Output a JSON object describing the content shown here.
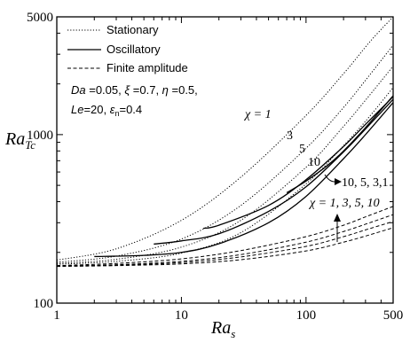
{
  "chart_data": {
    "type": "line",
    "xscale": "log",
    "yscale": "log",
    "xlim": [
      1,
      500
    ],
    "ylim": [
      100,
      5000
    ],
    "xticks": [
      {
        "value": 1,
        "label": "1"
      },
      {
        "value": 10,
        "label": "10"
      },
      {
        "value": 100,
        "label": "100"
      },
      {
        "value": 500,
        "label": "500"
      }
    ],
    "yticks": [
      {
        "value": 100,
        "label": "100"
      },
      {
        "value": 1000,
        "label": "1000"
      },
      {
        "value": 5000,
        "label": "5000"
      }
    ],
    "xlabel": {
      "main": "Ra",
      "sub": "s"
    },
    "ylabel": {
      "main": "Ra",
      "sub": "Tc"
    },
    "legend": {
      "position": "top-left",
      "entries": [
        {
          "label": "Stationary",
          "style": "dotted"
        },
        {
          "label": "Oscillatory",
          "style": "solid"
        },
        {
          "label": "Finite amplitude",
          "style": "dashed"
        }
      ]
    },
    "parameters": {
      "line1": {
        "Da": "Da",
        "Da_val": " =0.05, ",
        "xi": "ξ",
        "xi_val": " =0.7, ",
        "eta": "η",
        "eta_val": " =0.5,"
      },
      "line2": {
        "Le": "Le",
        "Le_val": "=20, ",
        "eps": "ε",
        "eps_sub": "n",
        "eps_val": "=0.4"
      }
    },
    "annotations": {
      "chi1": "χ = 1",
      "chi3": "3",
      "chi5": "5",
      "chi10": "10",
      "oscillatory_order": "10, 5, 3,1",
      "finite_order": "χ = 1, 3, 5, 10"
    },
    "series": [
      {
        "style": "dotted",
        "label": "χ = 1",
        "points": [
          [
            1,
            180
          ],
          [
            3,
            210
          ],
          [
            10,
            310
          ],
          [
            30,
            560
          ],
          [
            100,
            1300
          ],
          [
            200,
            2300
          ],
          [
            330,
            3600
          ],
          [
            500,
            5000
          ]
        ]
      },
      {
        "style": "dotted",
        "label": "3",
        "points": [
          [
            1,
            175
          ],
          [
            3,
            190
          ],
          [
            10,
            240
          ],
          [
            30,
            380
          ],
          [
            100,
            830
          ],
          [
            200,
            1450
          ],
          [
            300,
            2100
          ],
          [
            500,
            3400
          ]
        ]
      },
      {
        "style": "dotted",
        "label": "5",
        "points": [
          [
            1,
            172
          ],
          [
            3,
            182
          ],
          [
            10,
            215
          ],
          [
            30,
            310
          ],
          [
            100,
            640
          ],
          [
            200,
            1120
          ],
          [
            300,
            1600
          ],
          [
            500,
            2550
          ]
        ]
      },
      {
        "style": "dotted",
        "label": "10",
        "points": [
          [
            1,
            170
          ],
          [
            3,
            177
          ],
          [
            10,
            198
          ],
          [
            30,
            262
          ],
          [
            100,
            510
          ],
          [
            200,
            860
          ],
          [
            300,
            1200
          ],
          [
            500,
            1900
          ]
        ]
      },
      {
        "style": "solid",
        "label": "10",
        "points": [
          [
            2,
            189
          ],
          [
            5,
            192
          ],
          [
            10,
            200
          ],
          [
            20,
            225
          ],
          [
            50,
            300
          ],
          [
            100,
            430
          ],
          [
            200,
            720
          ],
          [
            300,
            1000
          ],
          [
            500,
            1550
          ]
        ]
      },
      {
        "style": "solid",
        "label": "5",
        "points": [
          [
            6,
            224
          ],
          [
            10,
            234
          ],
          [
            20,
            258
          ],
          [
            50,
            350
          ],
          [
            100,
            490
          ],
          [
            200,
            790
          ],
          [
            300,
            1080
          ],
          [
            500,
            1620
          ]
        ]
      },
      {
        "style": "solid",
        "label": "3",
        "points": [
          [
            15,
            278
          ],
          [
            20,
            290
          ],
          [
            50,
            380
          ],
          [
            100,
            540
          ],
          [
            200,
            850
          ],
          [
            300,
            1150
          ],
          [
            500,
            1680
          ]
        ]
      },
      {
        "style": "solid",
        "label": "1",
        "points": [
          [
            70,
            452
          ],
          [
            100,
            530
          ],
          [
            150,
            660
          ],
          [
            200,
            800
          ],
          [
            300,
            1100
          ],
          [
            500,
            1700
          ]
        ]
      },
      {
        "style": "dashed",
        "label": "χ = 1",
        "points": [
          [
            1,
            167
          ],
          [
            3,
            172
          ],
          [
            10,
            183
          ],
          [
            30,
            205
          ],
          [
            100,
            248
          ],
          [
            200,
            290
          ],
          [
            300,
            325
          ],
          [
            500,
            375
          ]
        ]
      },
      {
        "style": "dashed",
        "label": "3",
        "points": [
          [
            1,
            166
          ],
          [
            3,
            169
          ],
          [
            10,
            177
          ],
          [
            30,
            194
          ],
          [
            100,
            230
          ],
          [
            200,
            266
          ],
          [
            300,
            294
          ],
          [
            500,
            335
          ]
        ]
      },
      {
        "style": "dashed",
        "label": "5",
        "points": [
          [
            1,
            166
          ],
          [
            3,
            168
          ],
          [
            10,
            174
          ],
          [
            30,
            188
          ],
          [
            100,
            217
          ],
          [
            200,
            248
          ],
          [
            300,
            272
          ],
          [
            500,
            305
          ]
        ]
      },
      {
        "style": "dashed",
        "label": "10",
        "points": [
          [
            1,
            165
          ],
          [
            3,
            167
          ],
          [
            10,
            171
          ],
          [
            30,
            181
          ],
          [
            100,
            204
          ],
          [
            200,
            230
          ],
          [
            300,
            250
          ],
          [
            500,
            280
          ]
        ]
      }
    ]
  }
}
